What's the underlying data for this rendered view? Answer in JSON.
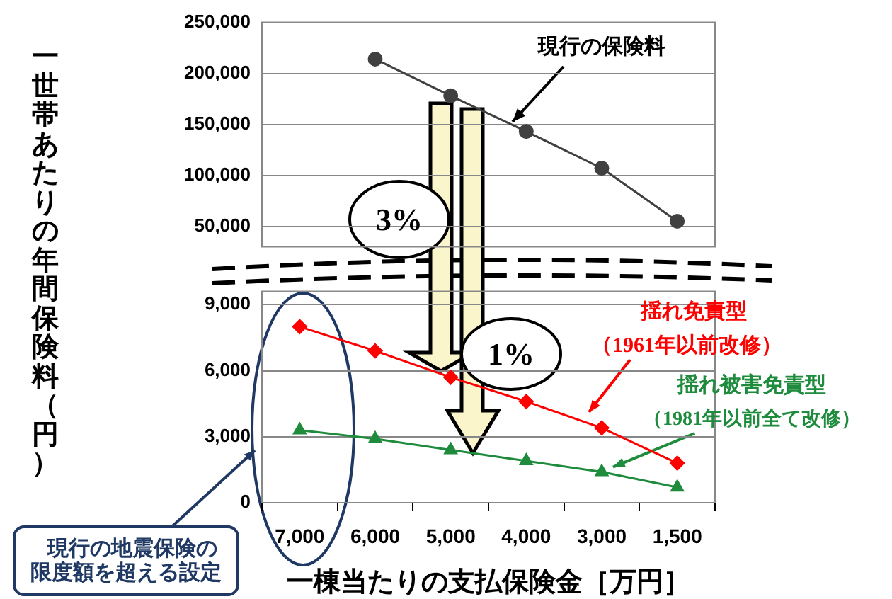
{
  "chart_data": [
    {
      "type": "line",
      "ylabel": "一世帯あたりの年間保険料（円）",
      "categories": [
        "7,000",
        "6,000",
        "5,000",
        "4,000",
        "3,000",
        "1,500"
      ],
      "series": [
        {
          "name": "現行の保険料",
          "color": "#404040",
          "marker": "circle",
          "values": [
            null,
            214000,
            178000,
            143000,
            107000,
            55000
          ]
        }
      ],
      "ylim": [
        30000,
        250000
      ],
      "yticks": [
        {
          "value": 50000,
          "label": "50,000"
        },
        {
          "value": 100000,
          "label": "100,000"
        },
        {
          "value": 150000,
          "label": "150,000"
        },
        {
          "value": 200000,
          "label": "200,000"
        },
        {
          "value": 250000,
          "label": "250,000"
        }
      ],
      "grid": "y",
      "tick_labels": "y",
      "annotations": [
        "3%"
      ]
    },
    {
      "type": "line",
      "xlabel": "一棟当たりの支払保険金［万円］",
      "categories": [
        "7,000",
        "6,000",
        "5,000",
        "4,000",
        "3,000",
        "1,500"
      ],
      "series": [
        {
          "name": "揺れ免責型",
          "color": "#ff0000",
          "marker": "diamond",
          "values": [
            8000,
            6900,
            5700,
            4600,
            3400,
            1800
          ]
        },
        {
          "name": "揺れ被害免責型",
          "color": "#1e8c3c",
          "marker": "triangle",
          "values": [
            3300,
            2900,
            2400,
            1900,
            1400,
            700
          ]
        }
      ],
      "ylim": [
        0,
        9600
      ],
      "yticks": [
        0,
        {
          "value": 3000,
          "label": "3,000"
        },
        {
          "value": 6000,
          "label": "6,000"
        },
        {
          "value": 9000,
          "label": "9,000"
        }
      ],
      "grid": "y",
      "annotations": [
        "（1961年以前改修）",
        {
          "text": "（1981年以前全て改修）",
          "x": "3,000",
          "y": 1400
        },
        "1%",
        "現行の地震保険の限度額を超える設定"
      ]
    }
  ]
}
